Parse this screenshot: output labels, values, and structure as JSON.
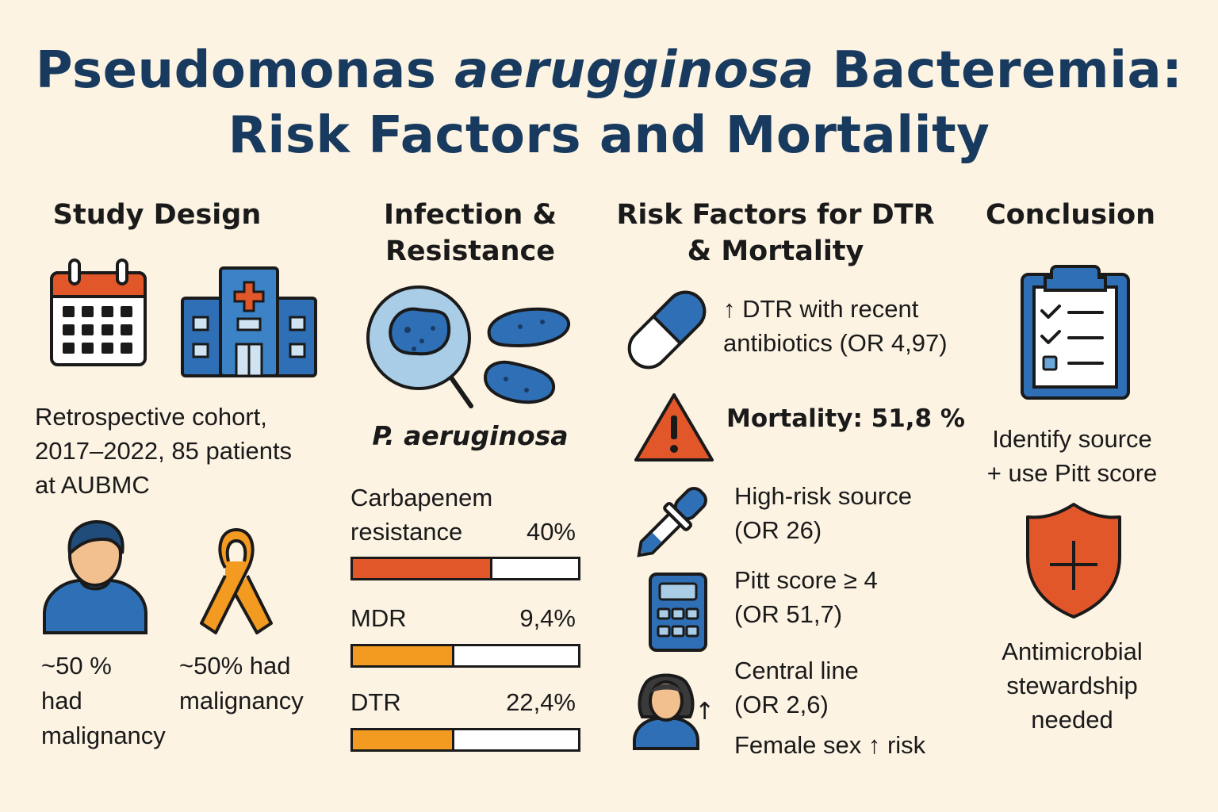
{
  "title": {
    "line1_pre": "Pseudomonas ",
    "line1_italic": "aerugginosa",
    "line1_post": " Bacteremia:",
    "line2": "Risk Factors and Mortality"
  },
  "colors": {
    "background": "#fcf3e3",
    "title": "#173a5e",
    "blue": "#2f6fb5",
    "orange": "#e2572a",
    "amber": "#f39a21"
  },
  "study_design": {
    "heading": "Study Design",
    "icons": [
      "calendar-icon",
      "hospital-icon",
      "person-icon",
      "cancer-ribbon-icon"
    ],
    "description": [
      "Retrospective cohort,",
      "2017–2022, 85 patients",
      "at AUBMC"
    ],
    "stat_left": [
      "~50 %",
      "had",
      "malignancy"
    ],
    "stat_right": [
      "~50% had",
      "malignancy"
    ]
  },
  "infection": {
    "heading": [
      "Infection &",
      "Resistance"
    ],
    "organism": "P. aeruginosa",
    "icons": [
      "magnifier-bacteria-icon",
      "bacteria-icon"
    ],
    "bars": [
      {
        "label_lines": [
          "Carbapenem",
          "resistance"
        ],
        "value_text": "40%",
        "fill_fraction": 0.62,
        "color": "#e2572a"
      },
      {
        "label_lines": [
          "MDR"
        ],
        "value_text": "9,4%",
        "fill_fraction": 0.45,
        "color": "#f39a21"
      },
      {
        "label_lines": [
          "DTR"
        ],
        "value_text": "22,4%",
        "fill_fraction": 0.45,
        "color": "#f39a21"
      }
    ]
  },
  "risk": {
    "heading": [
      "Risk Factors for DTR",
      "& Mortality"
    ],
    "items": [
      {
        "icon": "capsule-icon",
        "lines": [
          "↑ DTR with recent",
          "antibiotics (OR 4,97)"
        ]
      },
      {
        "icon": "warning-icon",
        "lines": [
          "Mortality: 51,8 %"
        ]
      },
      {
        "icon": "dropper-icon",
        "lines": [
          "High-risk source",
          "(OR 26)"
        ]
      },
      {
        "icon": "calculator-icon",
        "lines": [
          "Pitt score ≥ 4",
          "(OR 51,7)"
        ]
      },
      {
        "icon": "woman-icon",
        "lines": [
          "Central line",
          "(OR 2,6)"
        ]
      }
    ],
    "female_note": "Female sex ↑ risk",
    "woman_arrow": "↑"
  },
  "conclusion": {
    "heading": "Conclusion",
    "icons": [
      "clipboard-checklist-icon",
      "shield-icon"
    ],
    "text1": [
      "Identify source",
      "+ use Pitt score"
    ],
    "text2": [
      "Antimicrobial",
      "stewardship",
      "needed"
    ]
  }
}
